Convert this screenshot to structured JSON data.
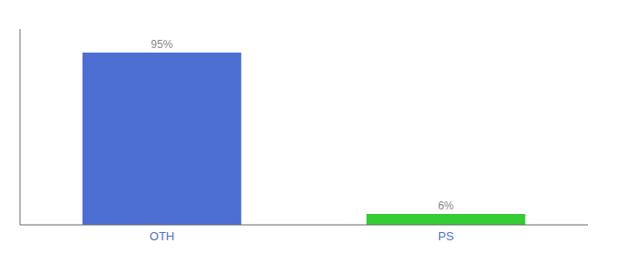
{
  "chart_data": {
    "type": "bar",
    "categories": [
      "OTH",
      "PS"
    ],
    "values": [
      95,
      6
    ],
    "value_labels": [
      "95%",
      "6%"
    ],
    "colors": [
      "#4d6fd4",
      "#33cc33"
    ],
    "ylim": [
      0,
      108
    ],
    "data_labels": true,
    "tick_labels": "x",
    "grid": false
  }
}
